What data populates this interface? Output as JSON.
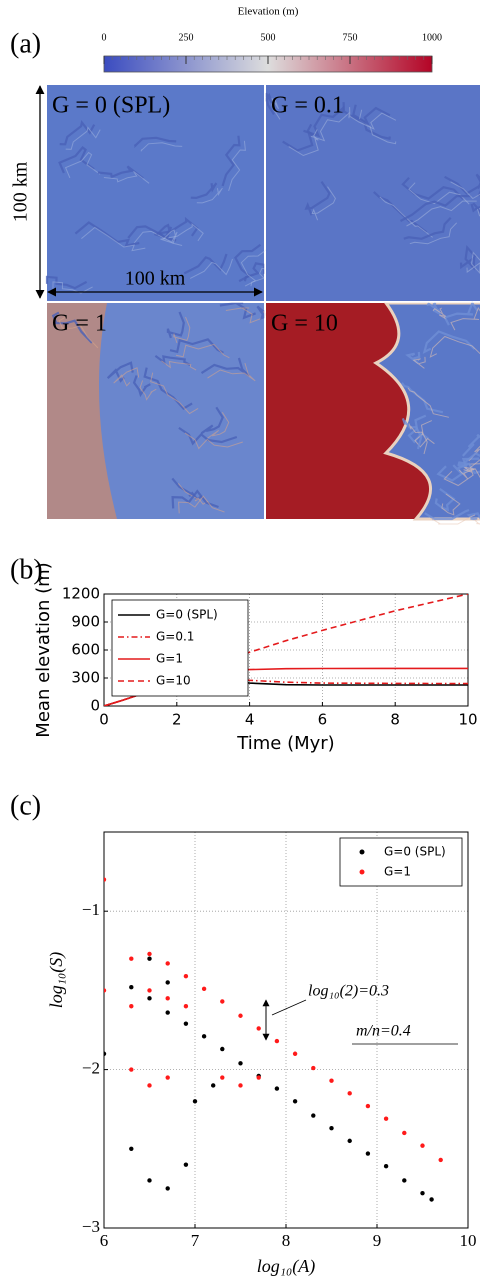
{
  "chart_data": [
    {
      "type": "colorbar",
      "panel": "(a)",
      "title": "Elevation (m)",
      "xlim": [
        0,
        1000
      ],
      "xticks": [
        0,
        250,
        500,
        750,
        1000
      ],
      "colors": [
        "#3b4cc0",
        "#dddddd",
        "#b40426"
      ],
      "maps": [
        {
          "label": "G = 0 (SPL)"
        },
        {
          "label": "G = 0.1"
        },
        {
          "label": "G = 1"
        },
        {
          "label": "G = 10"
        }
      ],
      "y_scale_label": "100 km",
      "x_scale_label": "100 km"
    },
    {
      "type": "line",
      "panel": "(b)",
      "xlabel": "Time (Myr)",
      "ylabel": "Mean elevation (m)",
      "xlim": [
        0,
        10
      ],
      "xticks": [
        0,
        2,
        4,
        6,
        8,
        10
      ],
      "ylim": [
        0,
        1200
      ],
      "yticks": [
        0,
        300,
        600,
        900,
        1200
      ],
      "grid": true,
      "legend": "upper left",
      "x": [
        0,
        0.5,
        1,
        1.5,
        2,
        2.5,
        3,
        3.5,
        4,
        5,
        6,
        8,
        10
      ],
      "series": [
        {
          "name": "G=0 (SPL)",
          "color": "#000000",
          "style": "solid",
          "values": [
            0,
            60,
            125,
            190,
            280,
            325,
            310,
            270,
            245,
            228,
            225,
            225,
            225
          ]
        },
        {
          "name": "G=0.1",
          "color": "#e41a1c",
          "style": "dashdot",
          "values": [
            0,
            60,
            125,
            190,
            280,
            328,
            322,
            298,
            275,
            255,
            245,
            242,
            240
          ]
        },
        {
          "name": "G=1",
          "color": "#e41a1c",
          "style": "solid",
          "values": [
            0,
            60,
            125,
            190,
            282,
            335,
            365,
            380,
            390,
            400,
            402,
            403,
            403
          ]
        },
        {
          "name": "G=10",
          "color": "#e41a1c",
          "style": "dashed",
          "values": [
            0,
            60,
            125,
            195,
            290,
            370,
            440,
            510,
            575,
            700,
            810,
            1020,
            1200
          ]
        }
      ]
    },
    {
      "type": "scatter",
      "panel": "(c)",
      "xlabel": "log₁₀(A)",
      "ylabel": "log₁₀(S)",
      "xlim": [
        6,
        10
      ],
      "xticks": [
        6,
        7,
        8,
        9,
        10
      ],
      "ylim": [
        -3,
        -0.5
      ],
      "yticks": [
        {
          "value": -3,
          "label": "−3"
        },
        {
          "value": -2,
          "label": "−2"
        },
        {
          "value": -1,
          "label": "−1"
        }
      ],
      "grid": true,
      "legend": "upper right",
      "annotations": [
        "log₁₀(2)=0.3",
        "m/n=0.4"
      ],
      "series": [
        {
          "name": "G=0 (SPL)",
          "color": "#000000",
          "x": [
            6.3,
            6.5,
            6.7,
            6.9,
            7.1,
            7.3,
            7.5,
            7.7,
            7.9,
            8.1,
            8.3,
            8.5,
            8.7,
            8.9,
            9.1,
            9.3,
            9.5,
            9.6,
            6.0,
            6.3,
            6.5,
            6.7,
            6.9,
            6.5,
            6.7,
            7.0,
            7.2
          ],
          "values": [
            -1.48,
            -1.55,
            -1.64,
            -1.71,
            -1.79,
            -1.87,
            -1.96,
            -2.04,
            -2.12,
            -2.2,
            -2.29,
            -2.37,
            -2.45,
            -2.53,
            -2.61,
            -2.7,
            -2.78,
            -2.82,
            -1.9,
            -2.5,
            -2.7,
            -2.75,
            -2.6,
            -1.3,
            -1.45,
            -2.2,
            -2.1
          ]
        },
        {
          "name": "G=1",
          "color": "#ff1a1a",
          "x": [
            6.3,
            6.5,
            6.7,
            6.9,
            7.1,
            7.3,
            7.5,
            7.7,
            7.9,
            8.1,
            8.3,
            8.5,
            8.7,
            8.9,
            9.1,
            9.3,
            9.5,
            9.7,
            6.0,
            6.0,
            6.3,
            6.5,
            6.7,
            6.9,
            6.3,
            6.5,
            6.7,
            7.3,
            7.5,
            7.7
          ],
          "values": [
            -1.3,
            -1.27,
            -1.33,
            -1.41,
            -1.49,
            -1.57,
            -1.66,
            -1.74,
            -1.82,
            -1.9,
            -1.99,
            -2.07,
            -2.15,
            -2.23,
            -2.31,
            -2.4,
            -2.48,
            -2.57,
            -0.8,
            -1.5,
            -1.6,
            -1.5,
            -1.55,
            -1.6,
            -2.0,
            -2.1,
            -2.05,
            -2.05,
            -2.1,
            -2.05
          ]
        }
      ]
    }
  ]
}
